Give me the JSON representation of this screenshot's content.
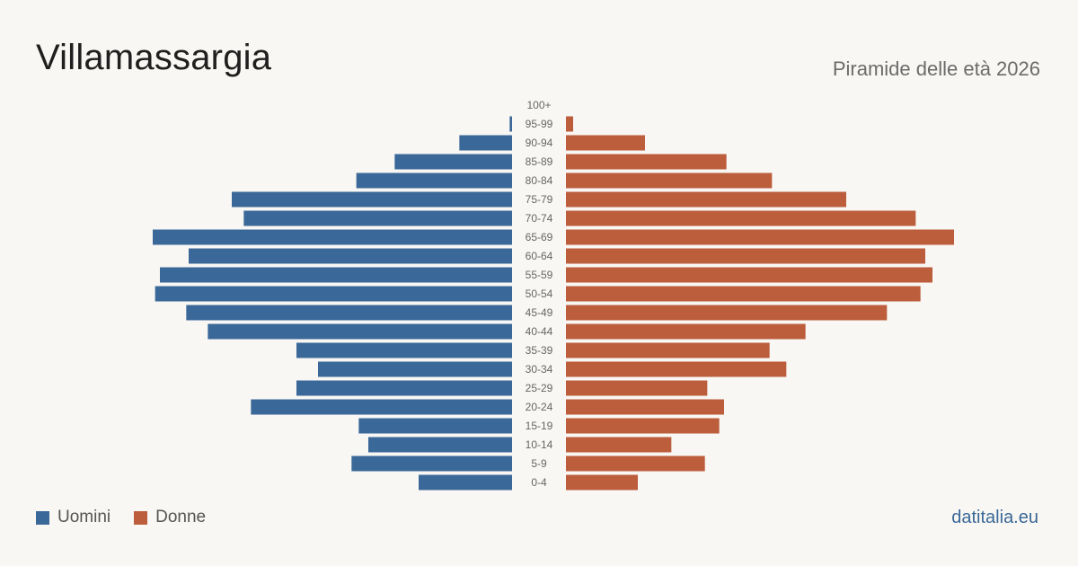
{
  "header": {
    "title": "Villamassargia",
    "subtitle": "Piramide delle età 2026"
  },
  "legend": {
    "male_label": "Uomini",
    "female_label": "Donne"
  },
  "brand": "datitalia.eu",
  "colors": {
    "male": "#3a6898",
    "female": "#bc5d3c",
    "background": "#f9f7f3",
    "tick_text": "#666666"
  },
  "chart_data": {
    "type": "bar",
    "orientation": "horizontal-pyramid",
    "categories": [
      "100+",
      "95-99",
      "90-94",
      "85-89",
      "80-84",
      "75-79",
      "70-74",
      "65-69",
      "60-64",
      "55-59",
      "50-54",
      "45-49",
      "40-44",
      "35-39",
      "30-34",
      "25-29",
      "20-24",
      "15-19",
      "10-14",
      "5-9",
      "0-4"
    ],
    "series": [
      {
        "name": "Uomini",
        "values": [
          0,
          1,
          22,
          49,
          65,
          117,
          112,
          150,
          135,
          147,
          149,
          136,
          127,
          90,
          81,
          90,
          109,
          64,
          60,
          67,
          39
        ]
      },
      {
        "name": "Donne",
        "values": [
          0,
          3,
          33,
          67,
          86,
          117,
          146,
          162,
          150,
          153,
          148,
          134,
          100,
          85,
          92,
          59,
          66,
          64,
          44,
          58,
          30
        ]
      }
    ],
    "xlim": [
      0,
      165
    ]
  }
}
